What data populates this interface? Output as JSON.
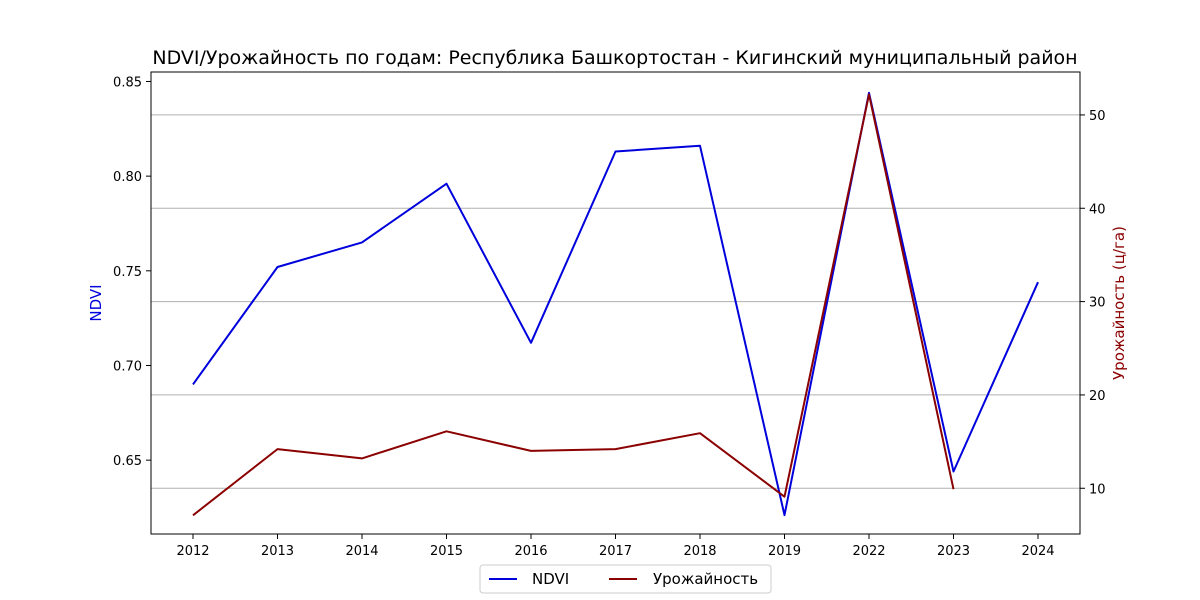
{
  "chart_data": {
    "type": "line",
    "title": "NDVI/Урожайность по годам: Республика Башкортостан - Кигинский муниципальный район",
    "categories": [
      "2012",
      "2013",
      "2014",
      "2015",
      "2016",
      "2017",
      "2018",
      "2019",
      "2022",
      "2023",
      "2024"
    ],
    "y_left": {
      "label": "NDVI",
      "color": "#0000dd",
      "ylim": [
        0.611,
        0.855
      ],
      "ticks": [
        0.65,
        0.7,
        0.75,
        0.8,
        0.85
      ],
      "tick_labels": [
        "0.65",
        "0.70",
        "0.75",
        "0.80",
        "0.85"
      ]
    },
    "y_right": {
      "label": "Урожайность (ц/га)",
      "color": "#8b0000",
      "ylim": [
        5.1,
        54.6
      ],
      "ticks": [
        10,
        20,
        30,
        40,
        50
      ],
      "tick_labels": [
        "10",
        "20",
        "30",
        "40",
        "50"
      ]
    },
    "series": [
      {
        "name": "NDVI",
        "axis": "left",
        "color": "#0000dd",
        "values": [
          0.69,
          0.752,
          0.765,
          0.796,
          0.712,
          0.813,
          0.816,
          0.621,
          0.844,
          0.644,
          0.744
        ]
      },
      {
        "name": "Урожайность",
        "axis": "right",
        "color": "#8b0000",
        "values": [
          7.1,
          14.2,
          13.2,
          16.1,
          14.0,
          14.2,
          15.9,
          9.1,
          52.2,
          9.9,
          null
        ]
      }
    ],
    "grid": "horizontal, right axis",
    "legend": "bottom-center"
  }
}
